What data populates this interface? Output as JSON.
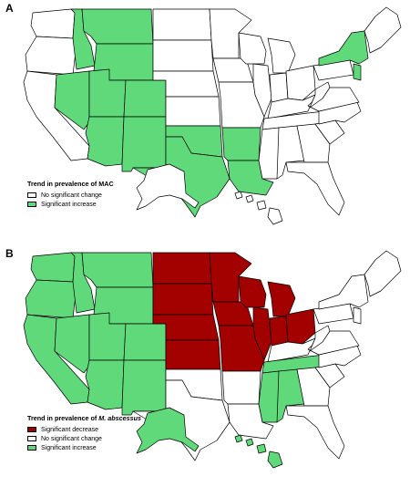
{
  "colors": {
    "increase": "#5fd97a",
    "decrease": "#a30000",
    "no_change": "#ffffff",
    "border": "#000000"
  },
  "panels": [
    {
      "letter": "A",
      "legend_title_prefix": "Trend in prevalence of ",
      "legend_title_organism": "MAC",
      "legend_title_italic": false,
      "legend": [
        {
          "label": "No significant change",
          "color": "#ffffff"
        },
        {
          "label": "Significant increase",
          "color": "#5fd97a"
        }
      ],
      "states": [
        {
          "name": "WA",
          "status": "no_change"
        },
        {
          "name": "OR",
          "status": "no_change"
        },
        {
          "name": "CA",
          "status": "no_change"
        },
        {
          "name": "ID",
          "status": "increase"
        },
        {
          "name": "NV",
          "status": "increase"
        },
        {
          "name": "MT",
          "status": "increase"
        },
        {
          "name": "WY",
          "status": "increase"
        },
        {
          "name": "UT",
          "status": "increase"
        },
        {
          "name": "AZ",
          "status": "increase"
        },
        {
          "name": "CO",
          "status": "increase"
        },
        {
          "name": "NM",
          "status": "increase"
        },
        {
          "name": "ND",
          "status": "no_change"
        },
        {
          "name": "SD",
          "status": "no_change"
        },
        {
          "name": "NE",
          "status": "no_change"
        },
        {
          "name": "KS",
          "status": "no_change"
        },
        {
          "name": "OK",
          "status": "increase"
        },
        {
          "name": "TX",
          "status": "increase"
        },
        {
          "name": "MN",
          "status": "no_change"
        },
        {
          "name": "IA",
          "status": "no_change"
        },
        {
          "name": "MO",
          "status": "no_change"
        },
        {
          "name": "AR",
          "status": "increase"
        },
        {
          "name": "LA",
          "status": "increase"
        },
        {
          "name": "WI",
          "status": "no_change"
        },
        {
          "name": "IL",
          "status": "no_change"
        },
        {
          "name": "MI",
          "status": "no_change"
        },
        {
          "name": "IN",
          "status": "no_change"
        },
        {
          "name": "OH",
          "status": "no_change"
        },
        {
          "name": "KY",
          "status": "no_change"
        },
        {
          "name": "TN",
          "status": "no_change"
        },
        {
          "name": "MS",
          "status": "no_change"
        },
        {
          "name": "AL",
          "status": "no_change"
        },
        {
          "name": "GA",
          "status": "no_change"
        },
        {
          "name": "FL",
          "status": "no_change"
        },
        {
          "name": "SC",
          "status": "no_change"
        },
        {
          "name": "NC",
          "status": "no_change"
        },
        {
          "name": "VA",
          "status": "no_change"
        },
        {
          "name": "WV",
          "status": "no_change"
        },
        {
          "name": "PA",
          "status": "no_change"
        },
        {
          "name": "NY",
          "status": "increase"
        },
        {
          "name": "NJ",
          "status": "increase"
        },
        {
          "name": "NE-region",
          "status": "no_change"
        },
        {
          "name": "AK",
          "status": "no_change"
        },
        {
          "name": "HI",
          "status": "no_change"
        }
      ]
    },
    {
      "letter": "B",
      "legend_title_prefix": "Trend in prevalence of ",
      "legend_title_organism": "M. abscessus",
      "legend_title_italic": true,
      "legend": [
        {
          "label": "Significant decrease",
          "color": "#a30000"
        },
        {
          "label": "No significant change",
          "color": "#ffffff"
        },
        {
          "label": "Significant increase",
          "color": "#5fd97a"
        }
      ],
      "states": [
        {
          "name": "WA",
          "status": "increase"
        },
        {
          "name": "OR",
          "status": "increase"
        },
        {
          "name": "CA",
          "status": "increase"
        },
        {
          "name": "ID",
          "status": "increase"
        },
        {
          "name": "NV",
          "status": "increase"
        },
        {
          "name": "MT",
          "status": "increase"
        },
        {
          "name": "WY",
          "status": "increase"
        },
        {
          "name": "UT",
          "status": "increase"
        },
        {
          "name": "AZ",
          "status": "increase"
        },
        {
          "name": "CO",
          "status": "increase"
        },
        {
          "name": "NM",
          "status": "increase"
        },
        {
          "name": "ND",
          "status": "decrease"
        },
        {
          "name": "SD",
          "status": "decrease"
        },
        {
          "name": "NE",
          "status": "decrease"
        },
        {
          "name": "KS",
          "status": "decrease"
        },
        {
          "name": "OK",
          "status": "no_change"
        },
        {
          "name": "TX",
          "status": "no_change"
        },
        {
          "name": "MN",
          "status": "decrease"
        },
        {
          "name": "IA",
          "status": "decrease"
        },
        {
          "name": "MO",
          "status": "decrease"
        },
        {
          "name": "AR",
          "status": "no_change"
        },
        {
          "name": "LA",
          "status": "no_change"
        },
        {
          "name": "WI",
          "status": "decrease"
        },
        {
          "name": "IL",
          "status": "decrease"
        },
        {
          "name": "MI",
          "status": "decrease"
        },
        {
          "name": "IN",
          "status": "decrease"
        },
        {
          "name": "OH",
          "status": "decrease"
        },
        {
          "name": "KY",
          "status": "no_change"
        },
        {
          "name": "TN",
          "status": "increase"
        },
        {
          "name": "MS",
          "status": "increase"
        },
        {
          "name": "AL",
          "status": "increase"
        },
        {
          "name": "GA",
          "status": "no_change"
        },
        {
          "name": "FL",
          "status": "no_change"
        },
        {
          "name": "SC",
          "status": "no_change"
        },
        {
          "name": "NC",
          "status": "no_change"
        },
        {
          "name": "VA",
          "status": "no_change"
        },
        {
          "name": "WV",
          "status": "no_change"
        },
        {
          "name": "PA",
          "status": "no_change"
        },
        {
          "name": "NY",
          "status": "no_change"
        },
        {
          "name": "NJ",
          "status": "no_change"
        },
        {
          "name": "NE-region",
          "status": "no_change"
        },
        {
          "name": "AK",
          "status": "increase"
        },
        {
          "name": "HI",
          "status": "increase"
        }
      ]
    }
  ]
}
